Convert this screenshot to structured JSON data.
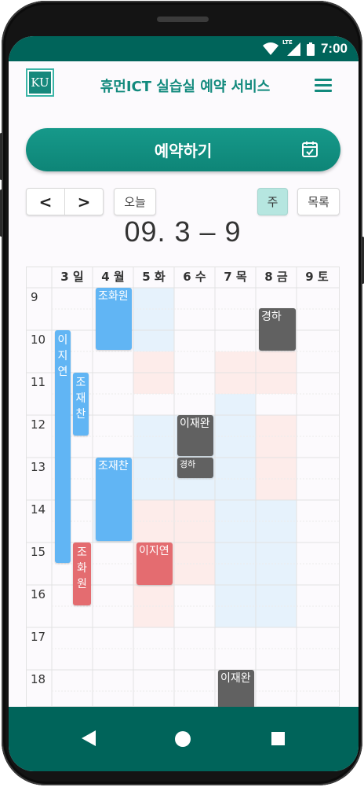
{
  "status_bar": {
    "time": "7:00",
    "network": "LTE"
  },
  "app": {
    "logo_text": "KU",
    "title": "휴먼ICT 실습실 예약 서비스"
  },
  "reserve_button": {
    "label": "예약하기"
  },
  "nav": {
    "prev": "<",
    "next": ">",
    "today": "오늘",
    "week": "주",
    "list": "목록",
    "range": "09. 3 – 9"
  },
  "calendar": {
    "day_headers": [
      "3 일",
      "4 월",
      "5 화",
      "6 수",
      "7 목",
      "8 금",
      "9 토"
    ],
    "hours": [
      "9",
      "10",
      "11",
      "12",
      "13",
      "14",
      "15",
      "16",
      "17",
      "18"
    ],
    "events": [
      {
        "id": "e1",
        "name": "조화원",
        "day": "4 월",
        "start": "09:00",
        "end": "10:30",
        "color": "#61b5f4"
      },
      {
        "id": "e2",
        "name": "경하",
        "day": "8 금",
        "start": "09:30",
        "end": "10:30",
        "color": "#616161"
      },
      {
        "id": "e3",
        "name": "이지연",
        "day": "3 일",
        "start": "10:00",
        "end": "15:30",
        "color": "#61b5f4"
      },
      {
        "id": "e4",
        "name": "조재찬",
        "day": "3 일",
        "start": "11:00",
        "end": "12:30",
        "color": "#61b5f4"
      },
      {
        "id": "e5",
        "name": "이재완",
        "day": "6 수",
        "start": "12:00",
        "end": "13:00",
        "color": "#616161"
      },
      {
        "id": "e6",
        "name": "경하",
        "day": "6 수",
        "start": "13:00",
        "end": "13:30",
        "color": "#616161"
      },
      {
        "id": "e7",
        "name": "조재찬",
        "day": "4 월",
        "start": "13:00",
        "end": "15:00",
        "color": "#61b5f4"
      },
      {
        "id": "e8",
        "name": "이지연",
        "day": "5 화",
        "start": "15:00",
        "end": "16:00",
        "color": "#e46c70"
      },
      {
        "id": "e9",
        "name": "조화원",
        "day": "3 일",
        "start": "15:00",
        "end": "16:30",
        "color": "#e46c70"
      },
      {
        "id": "e10",
        "name": "이재완",
        "day": "7 목",
        "start": "18:00",
        "end": "19:00",
        "color": "#616161"
      }
    ]
  },
  "colors": {
    "primary": "#00645a",
    "accent": "#128a7d",
    "highlight_blue": "#e6f2fc",
    "highlight_pink": "#fdecea"
  },
  "icons": [
    "lte-signal-icon",
    "battery-icon",
    "menu-icon",
    "calendar-check-icon",
    "back-icon",
    "home-icon",
    "recents-icon"
  ]
}
